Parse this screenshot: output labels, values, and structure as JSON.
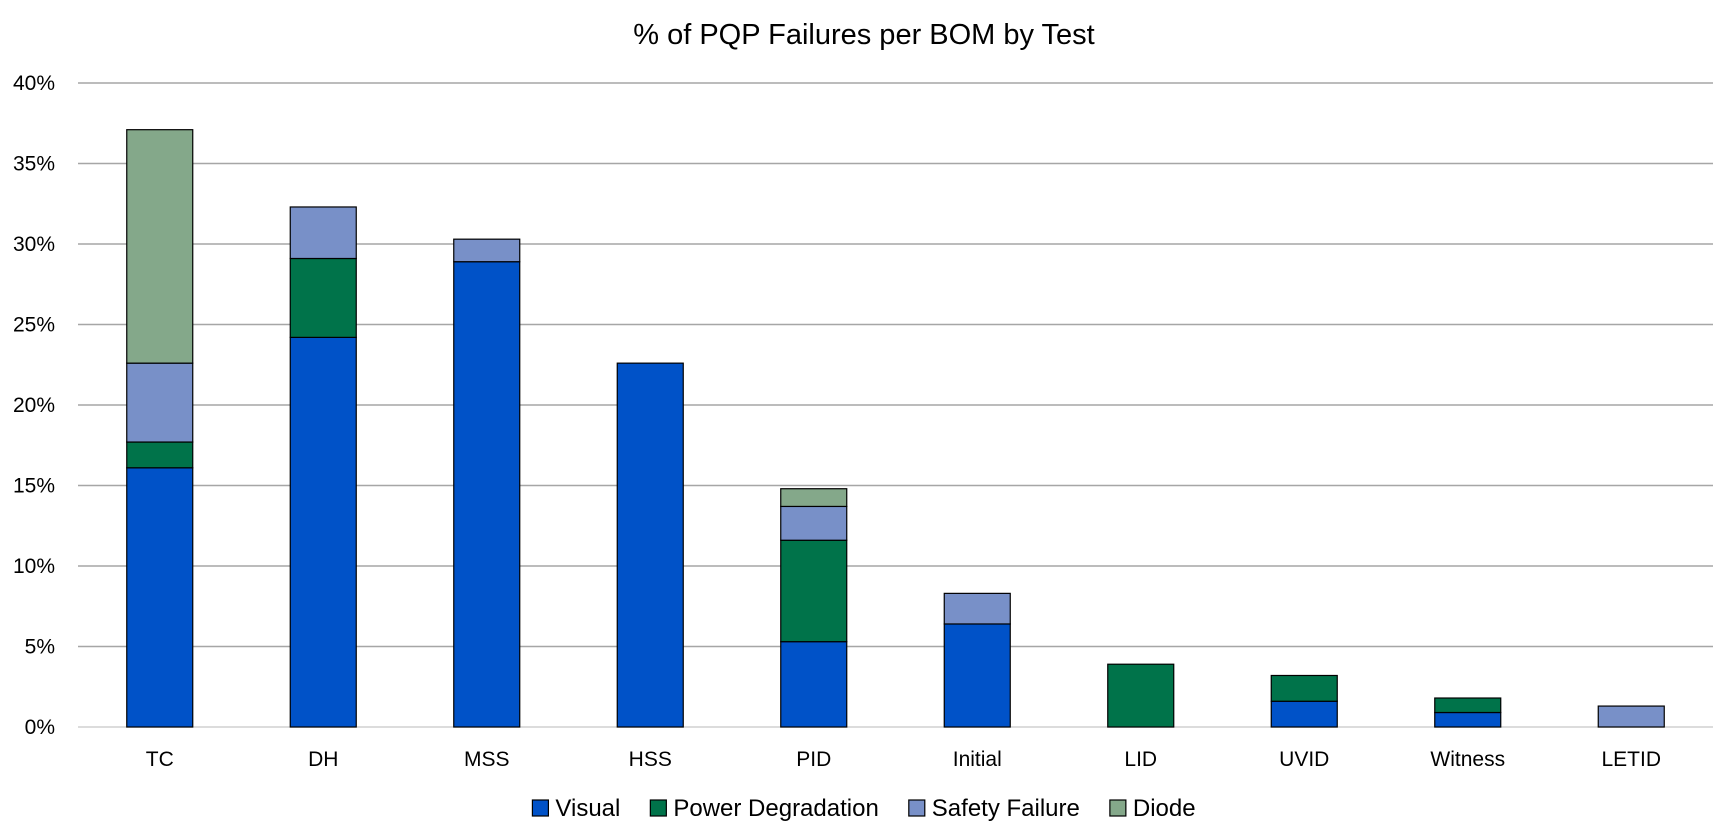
{
  "chart_data": {
    "type": "bar",
    "stacked": true,
    "title": "% of PQP Failures per BOM by Test",
    "xlabel": "",
    "ylabel": "",
    "ylim": [
      0,
      40
    ],
    "ytick_step": 5,
    "ytick_suffix": "%",
    "grid": true,
    "legend_position": "bottom",
    "categories": [
      "TC",
      "DH",
      "MSS",
      "HSS",
      "PID",
      "Initial",
      "LID",
      "UVID",
      "Witness",
      "LETID"
    ],
    "series": [
      {
        "name": "Visual",
        "color": "#0052c8",
        "values": [
          16.1,
          24.2,
          28.9,
          22.6,
          5.3,
          6.4,
          0,
          1.6,
          0.9,
          0
        ]
      },
      {
        "name": "Power Degradation",
        "color": "#00734a",
        "values": [
          1.6,
          4.9,
          0,
          0,
          6.3,
          0,
          3.9,
          1.6,
          0.9,
          0
        ]
      },
      {
        "name": "Safety Failure",
        "color": "#7890c8",
        "values": [
          4.9,
          3.2,
          1.4,
          0,
          2.1,
          1.9,
          0,
          0,
          0,
          1.3
        ]
      },
      {
        "name": "Diode",
        "color": "#84a88a",
        "values": [
          14.5,
          0,
          0,
          0,
          1.1,
          0,
          0,
          0,
          0,
          0
        ]
      }
    ]
  }
}
